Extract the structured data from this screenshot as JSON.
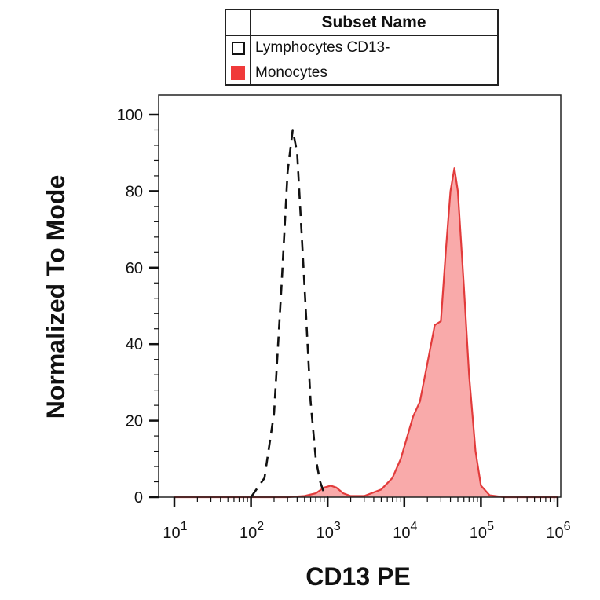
{
  "legend": {
    "title": "Subset Name",
    "items": [
      {
        "label": "Lymphocytes CD13-",
        "style": "dashed-outline",
        "color": "#111111"
      },
      {
        "label": "Monocytes",
        "style": "filled",
        "color": "#f03a3a"
      }
    ]
  },
  "chart_data": {
    "type": "area",
    "xlabel": "CD13 PE",
    "ylabel": "Normalized To Mode",
    "x_scale": "log",
    "x_tick_labels": [
      {
        "base": "10",
        "exp": "1",
        "value": 10
      },
      {
        "base": "10",
        "exp": "2",
        "value": 100
      },
      {
        "base": "10",
        "exp": "3",
        "value": 1000
      },
      {
        "base": "10",
        "exp": "4",
        "value": 10000
      },
      {
        "base": "10",
        "exp": "5",
        "value": 100000
      },
      {
        "base": "10",
        "exp": "6",
        "value": 1000000
      }
    ],
    "y_ticks": [
      "0",
      "20",
      "40",
      "60",
      "80",
      "100"
    ],
    "ylim": [
      0,
      100
    ],
    "grid": false,
    "legend_position": "top",
    "series": [
      {
        "name": "Lymphocytes CD13-",
        "style": "dashed",
        "color": "#111111",
        "points": [
          [
            100,
            0
          ],
          [
            150,
            5
          ],
          [
            200,
            22
          ],
          [
            250,
            55
          ],
          [
            300,
            85
          ],
          [
            350,
            96
          ],
          [
            400,
            90
          ],
          [
            500,
            55
          ],
          [
            600,
            25
          ],
          [
            700,
            10
          ],
          [
            800,
            4
          ],
          [
            900,
            1
          ],
          [
            1000,
            0
          ]
        ]
      },
      {
        "name": "Monocytes",
        "style": "filled",
        "color": "#e23b3b",
        "fill": "#f9aaaa",
        "points": [
          [
            10,
            0
          ],
          [
            300,
            0
          ],
          [
            500,
            0.3
          ],
          [
            700,
            1
          ],
          [
            900,
            2.5
          ],
          [
            1100,
            3
          ],
          [
            1300,
            2.5
          ],
          [
            1600,
            1
          ],
          [
            2000,
            0.3
          ],
          [
            3000,
            0.3
          ],
          [
            5000,
            2
          ],
          [
            7000,
            5
          ],
          [
            9000,
            10
          ],
          [
            11000,
            16
          ],
          [
            13000,
            21
          ],
          [
            16000,
            25
          ],
          [
            20000,
            35
          ],
          [
            25000,
            45
          ],
          [
            30000,
            46
          ],
          [
            35000,
            65
          ],
          [
            40000,
            80
          ],
          [
            45000,
            86
          ],
          [
            50000,
            80
          ],
          [
            60000,
            55
          ],
          [
            70000,
            32
          ],
          [
            85000,
            12
          ],
          [
            100000,
            3
          ],
          [
            130000,
            0.5
          ],
          [
            200000,
            0
          ],
          [
            1000000,
            0
          ]
        ]
      }
    ]
  }
}
